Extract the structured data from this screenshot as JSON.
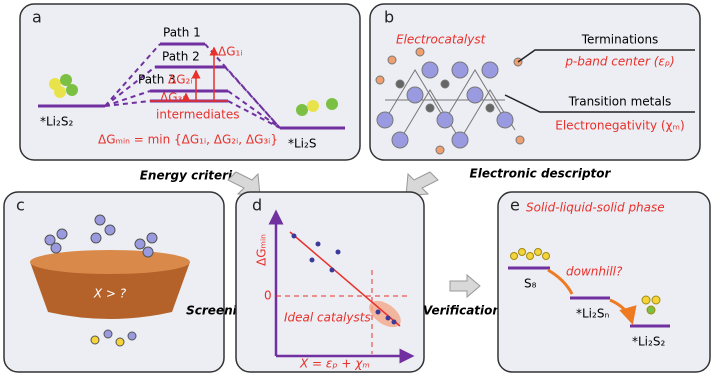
{
  "panel_a": {
    "letter": "a",
    "path1": "Path 1",
    "path2": "Path 2",
    "path3": "Path 3",
    "dg1": "ΔG₁ᵢ",
    "dg2": "ΔG₂ᵢ",
    "dg3": "ΔG₃ᵢ",
    "intermediates": "intermediates",
    "start": "*Li₂S₂",
    "end": "*Li₂S",
    "formula": "ΔGₘᵢₙ = min {ΔG₁ᵢ, ΔG₂ᵢ, ΔG₃ᵢ}",
    "caption": "Energy criteria"
  },
  "panel_b": {
    "letter": "b",
    "title": "Electrocatalyst",
    "terminations": "Terminations",
    "pband": "p-band center (εₚ)",
    "metals": "Transition metals",
    "electroneg": "Electronegativity (χₘ)",
    "caption": "Electronic descriptor"
  },
  "panel_c": {
    "letter": "c",
    "label": "X > ?",
    "arrow_label": "Screening"
  },
  "panel_d": {
    "letter": "d",
    "y_label": "ΔGₘᵢₙ",
    "zero": "0",
    "ideal": "Ideal catalysts",
    "x_label": "X = εₚ + χₘ",
    "arrow_label": "Verification"
  },
  "panel_e": {
    "letter": "e",
    "title": "Solid-liquid-solid phase",
    "s8": "S₈",
    "downhill": "downhill?",
    "mid": "*Li₂Sₙ",
    "end": "*Li₂S₂"
  }
}
